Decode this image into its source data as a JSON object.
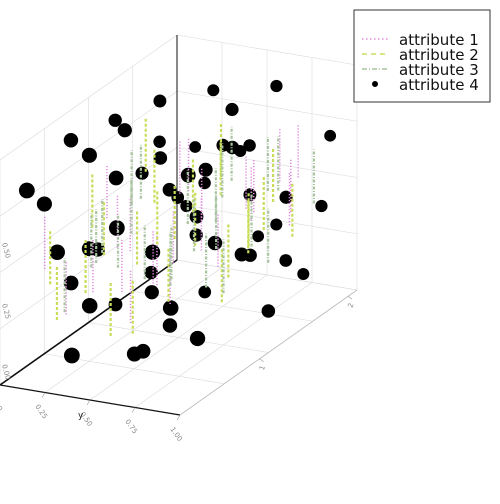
{
  "chart_data": {
    "type": "scatter",
    "projection": "3d",
    "legend": {
      "placement": "top-right",
      "entries": [
        {
          "label": "attribute 1",
          "color": "#e08be0",
          "style": "dotted-line"
        },
        {
          "label": "attribute 2",
          "color": "#c9dd5a",
          "style": "dashed-line"
        },
        {
          "label": "attribute 3",
          "color": "#a9c4a0",
          "style": "dash-dot-line"
        },
        {
          "label": "attribute 4",
          "color": "#000000",
          "style": "marker"
        }
      ]
    },
    "axes": {
      "x": {
        "label": "",
        "ticks": [
          "1",
          "2"
        ]
      },
      "y": {
        "label": "y",
        "ticks": [
          "0.00",
          "0.25",
          "0.50",
          "0.75",
          "1.00"
        ]
      },
      "z": {
        "label": "",
        "ticks": [
          "0.50",
          "0.25",
          "0.00"
        ]
      }
    },
    "grid": true,
    "series": [
      {
        "name": "attribute 4",
        "color": "#000000",
        "points": [
          [
            0.05,
            0.1,
            0.85
          ],
          [
            0.12,
            0.2,
            0.55
          ],
          [
            0.2,
            0.05,
            0.7
          ],
          [
            0.3,
            0.35,
            0.8
          ],
          [
            0.4,
            0.15,
            0.4
          ],
          [
            0.5,
            0.45,
            0.65
          ],
          [
            0.6,
            0.25,
            0.2
          ],
          [
            0.7,
            0.55,
            0.75
          ],
          [
            0.8,
            0.35,
            0.5
          ],
          [
            0.9,
            0.65,
            0.3
          ],
          [
            0.15,
            0.7,
            0.6
          ],
          [
            0.25,
            0.8,
            0.9
          ],
          [
            0.35,
            0.6,
            0.15
          ],
          [
            0.45,
            0.9,
            0.45
          ],
          [
            0.55,
            0.75,
            0.85
          ],
          [
            0.65,
            0.95,
            0.6
          ],
          [
            0.75,
            0.85,
            0.25
          ],
          [
            0.85,
            0.7,
            0.95
          ],
          [
            0.95,
            0.9,
            0.7
          ],
          [
            0.1,
            0.4,
            0.35
          ],
          [
            0.2,
            0.55,
            0.1
          ],
          [
            0.3,
            0.1,
            0.3
          ],
          [
            0.4,
            0.3,
            0.95
          ],
          [
            0.5,
            0.15,
            0.1
          ],
          [
            0.6,
            0.5,
            0.4
          ],
          [
            0.7,
            0.2,
            0.9
          ],
          [
            0.8,
            0.1,
            0.65
          ],
          [
            0.9,
            0.3,
            0.85
          ],
          [
            0.95,
            0.5,
            0.2
          ],
          [
            0.15,
            0.95,
            0.25
          ],
          [
            0.35,
            0.85,
            0.55
          ],
          [
            0.55,
            0.95,
            0.15
          ],
          [
            0.65,
            0.65,
            0.95
          ],
          [
            0.75,
            0.4,
            0.05
          ],
          [
            0.85,
            0.95,
            0.45
          ],
          [
            0.05,
            0.6,
            0.75
          ],
          [
            0.25,
            0.25,
            0.5
          ],
          [
            0.45,
            0.7,
            0.8
          ],
          [
            0.6,
            0.8,
            0.35
          ],
          [
            0.7,
            0.7,
            0.55
          ],
          [
            0.8,
            0.6,
            0.7
          ],
          [
            0.9,
            0.8,
            0.1
          ],
          [
            0.1,
            0.85,
            0.4
          ],
          [
            0.3,
            0.5,
            0.05
          ],
          [
            0.5,
            0.6,
            0.55
          ],
          [
            0.65,
            0.15,
            0.6
          ],
          [
            0.85,
            0.2,
            0.35
          ],
          [
            0.95,
            0.15,
            0.55
          ],
          [
            0.2,
            0.3,
            0.95
          ],
          [
            0.4,
            0.45,
            0.25
          ],
          [
            0.55,
            0.35,
            0.75
          ],
          [
            0.75,
            0.25,
            0.45
          ],
          [
            0.05,
            0.35,
            0.15
          ],
          [
            0.35,
            0.05,
            0.9
          ],
          [
            0.6,
            0.05,
            0.85
          ],
          [
            0.9,
            0.45,
            0.6
          ]
        ]
      },
      {
        "name": "attribute 1",
        "color": "#e08be0",
        "points": [
          [
            0.1,
            0.15,
            0.6
          ],
          [
            0.22,
            0.3,
            0.45
          ],
          [
            0.35,
            0.25,
            0.7
          ],
          [
            0.48,
            0.4,
            0.35
          ],
          [
            0.58,
            0.55,
            0.6
          ],
          [
            0.68,
            0.45,
            0.4
          ],
          [
            0.78,
            0.6,
            0.55
          ],
          [
            0.88,
            0.75,
            0.5
          ],
          [
            0.3,
            0.65,
            0.4
          ],
          [
            0.42,
            0.55,
            0.5
          ],
          [
            0.52,
            0.7,
            0.45
          ],
          [
            0.62,
            0.8,
            0.65
          ],
          [
            0.72,
            0.9,
            0.55
          ],
          [
            0.82,
            0.85,
            0.7
          ],
          [
            0.18,
            0.5,
            0.5
          ],
          [
            0.28,
            0.45,
            0.3
          ],
          [
            0.38,
            0.35,
            0.55
          ],
          [
            0.46,
            0.2,
            0.5
          ],
          [
            0.56,
            0.3,
            0.3
          ],
          [
            0.66,
            0.35,
            0.65
          ],
          [
            0.76,
            0.3,
            0.6
          ],
          [
            0.86,
            0.55,
            0.45
          ],
          [
            0.92,
            0.65,
            0.6
          ],
          [
            0.12,
            0.25,
            0.4
          ]
        ]
      },
      {
        "name": "attribute 2",
        "color": "#c9dd5a",
        "points": [
          [
            0.08,
            0.2,
            0.55
          ],
          [
            0.18,
            0.4,
            0.65
          ],
          [
            0.28,
            0.2,
            0.4
          ],
          [
            0.38,
            0.5,
            0.6
          ],
          [
            0.48,
            0.6,
            0.7
          ],
          [
            0.58,
            0.4,
            0.5
          ],
          [
            0.68,
            0.6,
            0.3
          ],
          [
            0.78,
            0.75,
            0.6
          ],
          [
            0.88,
            0.6,
            0.4
          ],
          [
            0.24,
            0.7,
            0.45
          ],
          [
            0.34,
            0.75,
            0.65
          ],
          [
            0.44,
            0.8,
            0.35
          ],
          [
            0.54,
            0.85,
            0.55
          ],
          [
            0.64,
            0.75,
            0.45
          ],
          [
            0.74,
            0.5,
            0.7
          ],
          [
            0.84,
            0.4,
            0.55
          ],
          [
            0.94,
            0.7,
            0.35
          ],
          [
            0.14,
            0.6,
            0.35
          ],
          [
            0.32,
            0.3,
            0.2
          ],
          [
            0.52,
            0.25,
            0.4
          ],
          [
            0.72,
            0.15,
            0.55
          ],
          [
            0.62,
            0.2,
            0.75
          ],
          [
            0.42,
            0.1,
            0.6
          ],
          [
            0.22,
            0.1,
            0.3
          ]
        ]
      },
      {
        "name": "attribute 3",
        "color": "#a9c4a0",
        "points": [
          [
            0.06,
            0.3,
            0.45
          ],
          [
            0.16,
            0.35,
            0.6
          ],
          [
            0.26,
            0.4,
            0.55
          ],
          [
            0.36,
            0.45,
            0.45
          ],
          [
            0.46,
            0.5,
            0.4
          ],
          [
            0.56,
            0.65,
            0.5
          ],
          [
            0.66,
            0.55,
            0.55
          ],
          [
            0.76,
            0.65,
            0.4
          ],
          [
            0.86,
            0.7,
            0.6
          ],
          [
            0.96,
            0.8,
            0.5
          ],
          [
            0.2,
            0.75,
            0.55
          ],
          [
            0.3,
            0.85,
            0.5
          ],
          [
            0.4,
            0.65,
            0.7
          ],
          [
            0.5,
            0.75,
            0.35
          ],
          [
            0.6,
            0.9,
            0.45
          ],
          [
            0.7,
            0.8,
            0.7
          ],
          [
            0.8,
            0.5,
            0.65
          ],
          [
            0.9,
            0.35,
            0.5
          ],
          [
            0.12,
            0.45,
            0.7
          ],
          [
            0.34,
            0.2,
            0.5
          ],
          [
            0.54,
            0.2,
            0.65
          ],
          [
            0.74,
            0.35,
            0.35
          ],
          [
            0.64,
            0.1,
            0.45
          ],
          [
            0.44,
            0.35,
            0.75
          ]
        ]
      }
    ]
  }
}
